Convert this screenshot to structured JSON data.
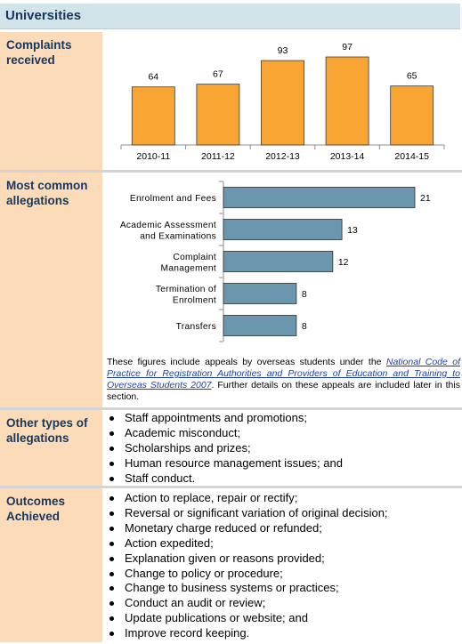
{
  "header": {
    "title": "Universities"
  },
  "sections": {
    "complaints": {
      "label": "Complaints received"
    },
    "allegations": {
      "label": "Most common allegations"
    },
    "other": {
      "label": "Other types of allegations"
    },
    "outcomes": {
      "label": "Outcomes Achieved"
    }
  },
  "colors": {
    "bar_orange": "#f9a533",
    "bar_blue": "#6a97ad",
    "title_blue": "#17375e",
    "label_bg": "#fcdcb8",
    "header_bg": "#d3e3ea"
  },
  "chart_data": [
    {
      "type": "bar",
      "title": "",
      "categories": [
        "2010-11",
        "2011-12",
        "2012-13",
        "2013-14",
        "2014-15"
      ],
      "values": [
        64,
        67,
        93,
        97,
        65
      ],
      "value_labels": [
        "64",
        "67",
        "93",
        "97",
        "65"
      ],
      "ylim": [
        0,
        100
      ],
      "grid": false,
      "legend": "none"
    },
    {
      "type": "bar",
      "orientation": "horizontal",
      "title": "",
      "categories": [
        [
          "Enrolment and Fees"
        ],
        [
          "Academic Assessment",
          "and Examinations"
        ],
        [
          "Complaint",
          "Management"
        ],
        [
          "Termination of",
          "Enrolment"
        ],
        [
          "Transfers"
        ]
      ],
      "values": [
        21,
        13,
        12,
        8,
        8
      ],
      "value_labels": [
        "21",
        "13",
        "12",
        "8",
        "8"
      ],
      "xlim": [
        0,
        21
      ],
      "grid": false,
      "legend": "none"
    }
  ],
  "note": {
    "prefix": "These figures include appeals by overseas students under the ",
    "link": "National Code of Practice for Registration Authorities and Providers of Education and Training to Overseas Students 2007",
    "suffix": ". Further details on these appeals are included later in this section."
  },
  "other_items": [
    "Staff appointments and promotions;",
    "Academic misconduct;",
    "Scholarships and prizes;",
    "Human resource management issues; and",
    "Staff conduct."
  ],
  "outcome_items": [
    "Action to replace, repair or rectify;",
    "Reversal or significant variation of original decision;",
    "Monetary charge reduced or refunded;",
    "Action expedited;",
    "Explanation given or reasons provided;",
    "Change to policy or procedure;",
    "Change to business systems or practices;",
    "Conduct an audit or review;",
    "Update publications or website; and",
    "Improve record keeping."
  ]
}
